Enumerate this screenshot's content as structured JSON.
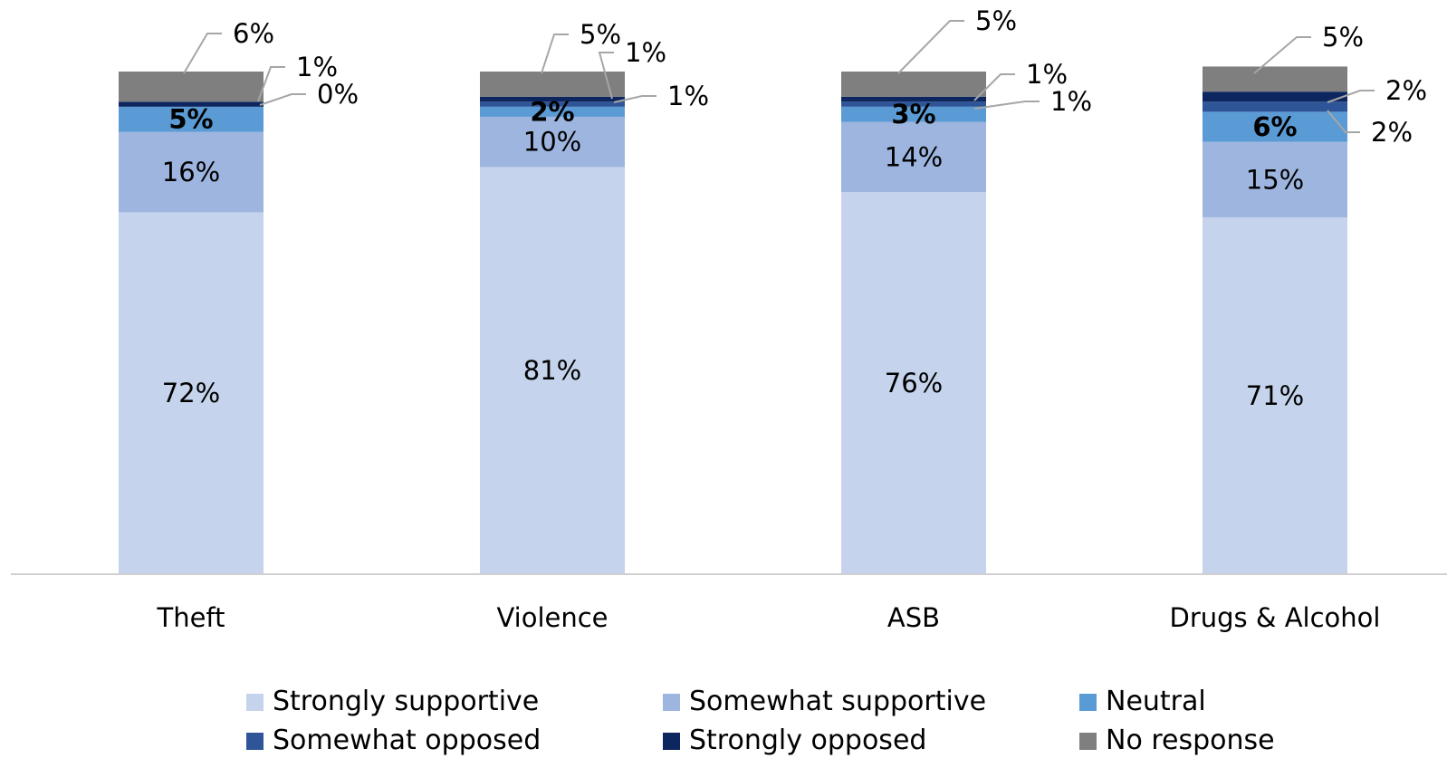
{
  "chart_data": {
    "type": "bar",
    "stacked": true,
    "title": "",
    "xlabel": "",
    "ylabel": "",
    "ylim": [
      0,
      100
    ],
    "grid": false,
    "legend_position": "bottom",
    "categories": [
      "Theft",
      "Violence",
      "ASB",
      "Drugs & Alcohol"
    ],
    "series": [
      {
        "name": "Strongly supportive",
        "color": "#c5d4ec",
        "values": [
          72,
          81,
          76,
          71
        ],
        "labels": [
          "72%",
          "81%",
          "76%",
          "71%"
        ],
        "label_style": "inside"
      },
      {
        "name": "Somewhat supportive",
        "color": "#9db5df",
        "values": [
          16,
          10,
          14,
          15
        ],
        "labels": [
          "16%",
          "10%",
          "14%",
          "15%"
        ],
        "label_style": "inside"
      },
      {
        "name": "Neutral",
        "color": "#5b9bd5",
        "values": [
          5,
          2,
          3,
          6
        ],
        "labels": [
          "5%",
          "2%",
          "3%",
          "6%"
        ],
        "label_style": "inside-bold"
      },
      {
        "name": "Somewhat opposed",
        "color": "#2e5597",
        "values": [
          0,
          1,
          1,
          2
        ],
        "labels": [
          "0%",
          "1%",
          "1%",
          "2%"
        ],
        "label_style": "callout"
      },
      {
        "name": "Strongly opposed",
        "color": "#0d2660",
        "values": [
          1,
          1,
          1,
          2
        ],
        "labels": [
          "1%",
          "1%",
          "1%",
          "2%"
        ],
        "label_style": "callout"
      },
      {
        "name": "No response",
        "color": "#7f7f7f",
        "values": [
          6,
          5,
          5,
          5
        ],
        "labels": [
          "6%",
          "5%",
          "5%",
          "5%"
        ],
        "label_style": "callout"
      }
    ]
  }
}
